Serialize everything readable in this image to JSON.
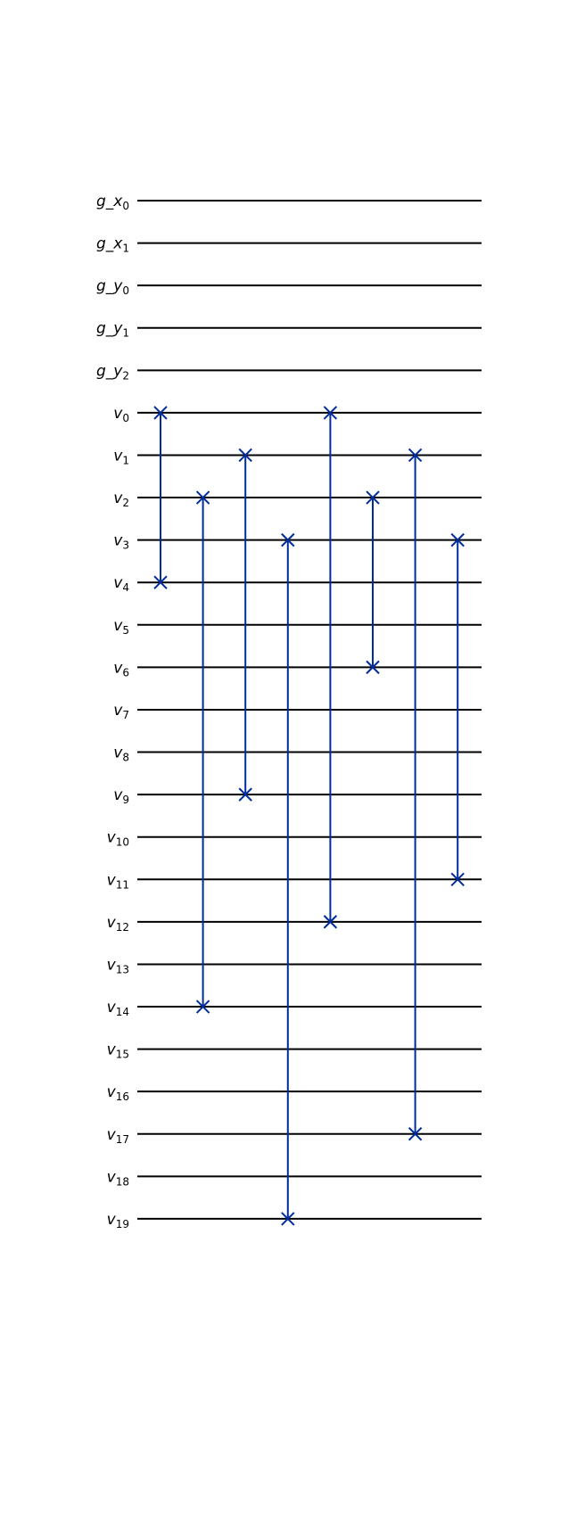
{
  "colors": {
    "wire": "#000000",
    "swap": "#002D9C"
  },
  "wires": [
    {
      "name": "g_x",
      "sub": "0"
    },
    {
      "name": "g_x",
      "sub": "1"
    },
    {
      "name": "g_y",
      "sub": "0"
    },
    {
      "name": "g_y",
      "sub": "1"
    },
    {
      "name": "g_y",
      "sub": "2"
    },
    {
      "name": "v",
      "sub": "0"
    },
    {
      "name": "v",
      "sub": "1"
    },
    {
      "name": "v",
      "sub": "2"
    },
    {
      "name": "v",
      "sub": "3"
    },
    {
      "name": "v",
      "sub": "4"
    },
    {
      "name": "v",
      "sub": "5"
    },
    {
      "name": "v",
      "sub": "6"
    },
    {
      "name": "v",
      "sub": "7"
    },
    {
      "name": "v",
      "sub": "8"
    },
    {
      "name": "v",
      "sub": "9"
    },
    {
      "name": "v",
      "sub": "10"
    },
    {
      "name": "v",
      "sub": "11"
    },
    {
      "name": "v",
      "sub": "12"
    },
    {
      "name": "v",
      "sub": "13"
    },
    {
      "name": "v",
      "sub": "14"
    },
    {
      "name": "v",
      "sub": "15"
    },
    {
      "name": "v",
      "sub": "16"
    },
    {
      "name": "v",
      "sub": "17"
    },
    {
      "name": "v",
      "sub": "18"
    },
    {
      "name": "v",
      "sub": "19"
    }
  ],
  "gates": [
    {
      "type": "swap",
      "qubits": [
        "v0",
        "v4"
      ]
    },
    {
      "type": "swap",
      "qubits": [
        "v2",
        "v14"
      ]
    },
    {
      "type": "swap",
      "qubits": [
        "v1",
        "v9"
      ]
    },
    {
      "type": "swap",
      "qubits": [
        "v3",
        "v19"
      ]
    },
    {
      "type": "swap",
      "qubits": [
        "v0",
        "v12"
      ]
    },
    {
      "type": "swap",
      "qubits": [
        "v2",
        "v6"
      ]
    },
    {
      "type": "swap",
      "qubits": [
        "v1",
        "v17"
      ]
    },
    {
      "type": "swap",
      "qubits": [
        "v3",
        "v11"
      ]
    }
  ]
}
